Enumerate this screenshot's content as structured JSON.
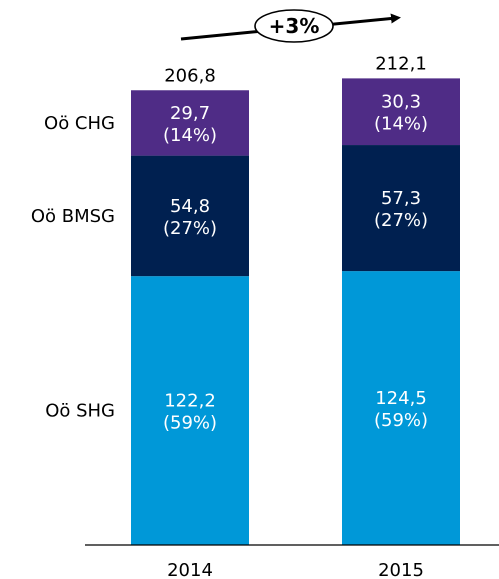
{
  "chart_data": {
    "type": "bar",
    "stacked": true,
    "categories": [
      "2014",
      "2015"
    ],
    "totals": [
      "206,8",
      "212,1"
    ],
    "series": [
      {
        "name": "Oö SHG",
        "color": "#0098d8",
        "values": [
          122.2,
          124.5
        ],
        "labels": [
          "122,2",
          "124,5"
        ],
        "shares": [
          "(59%)",
          "(59%)"
        ]
      },
      {
        "name": "Oö BMSG",
        "color": "#002050",
        "values": [
          54.8,
          57.3
        ],
        "labels": [
          "54,8",
          "57,3"
        ],
        "shares": [
          "(27%)",
          "(27%)"
        ]
      },
      {
        "name": "Oö CHG",
        "color": "#4f2c86",
        "values": [
          29.7,
          30.3
        ],
        "labels": [
          "29,7",
          "30,3"
        ],
        "shares": [
          "(14%)",
          "(14%)"
        ]
      }
    ],
    "annotation": "+3%",
    "legend": "left, inline labels",
    "grid": false
  }
}
